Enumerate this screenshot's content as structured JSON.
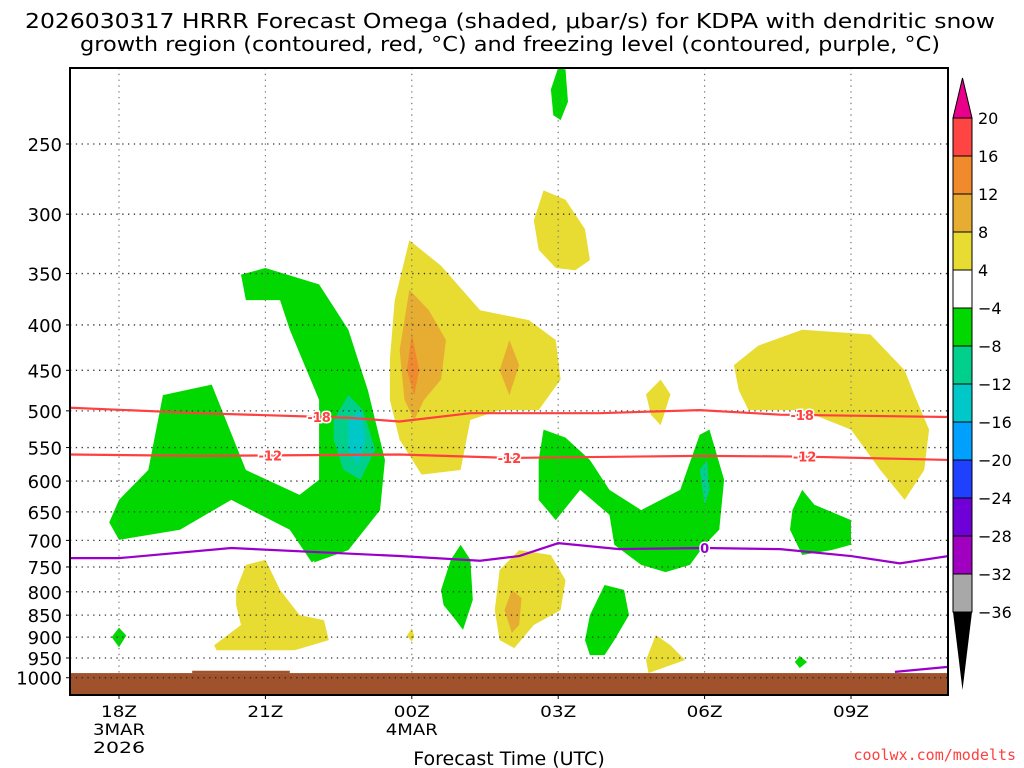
{
  "chart_data": {
    "type": "heatmap",
    "title_lines": [
      "2026030317 HRRR Forecast Omega (shaded, μbar/s) for KDPA with dendritic snow",
      "growth region (contoured, red, °C) and freezing level (contoured, purple, °C)"
    ],
    "xlabel": "Forecast Time (UTC)",
    "watermark": "coolwx.com/modelts",
    "xlim": [
      -1,
      17
    ],
    "ylim": [
      1045,
      205
    ],
    "y_scale": "log",
    "x_ticks": [
      {
        "h": 0,
        "lines": [
          "18Z",
          "3MAR",
          "2026"
        ]
      },
      {
        "h": 3,
        "lines": [
          "21Z"
        ]
      },
      {
        "h": 6,
        "lines": [
          "00Z",
          "4MAR"
        ]
      },
      {
        "h": 9,
        "lines": [
          "03Z"
        ]
      },
      {
        "h": 12,
        "lines": [
          "06Z"
        ]
      },
      {
        "h": 15,
        "lines": [
          "09Z"
        ]
      }
    ],
    "y_ticks": [
      250,
      300,
      350,
      400,
      450,
      500,
      550,
      600,
      650,
      700,
      750,
      800,
      850,
      900,
      950,
      1000
    ],
    "grid": true,
    "colorbar": {
      "labels": [
        "20",
        "16",
        "12",
        "8",
        "4",
        "−4",
        "−8",
        "−12",
        "−16",
        "−20",
        "−24",
        "−28",
        "−32",
        "−36"
      ],
      "colors": [
        "#ff4444",
        "#f08a2c",
        "#e6ad32",
        "#e8dc32",
        "#ffffff",
        "#00d800",
        "#00d08c",
        "#00c8c8",
        "#00a0ff",
        "#2040ff",
        "#7000d8",
        "#a000c0",
        "#a8a8a8"
      ],
      "top_arrow_color": "#e8008a",
      "bottom_arrow_color": "#000000"
    },
    "shaded_regions": [
      {
        "fill": "#00d800",
        "pts": [
          [
            -0.2,
            668
          ],
          [
            0,
            630
          ],
          [
            0.6,
            583
          ],
          [
            0.9,
            480
          ],
          [
            1.9,
            467
          ],
          [
            2.6,
            583
          ],
          [
            3.7,
            622
          ],
          [
            4.1,
            598
          ],
          [
            4.3,
            718
          ],
          [
            3.95,
            741
          ],
          [
            3.5,
            681
          ],
          [
            2.3,
            630
          ],
          [
            1.25,
            681
          ],
          [
            0,
            699
          ]
        ]
      },
      {
        "fill": "#00d800",
        "pts": [
          [
            2.5,
            351
          ],
          [
            3.0,
            345
          ],
          [
            4.1,
            360
          ],
          [
            4.7,
            405
          ],
          [
            5.1,
            474
          ],
          [
            5.45,
            568
          ],
          [
            5.35,
            647
          ],
          [
            4.7,
            718
          ],
          [
            4.0,
            741
          ],
          [
            4.1,
            598
          ],
          [
            4.1,
            486
          ],
          [
            3.5,
            405
          ],
          [
            3.3,
            375
          ],
          [
            2.6,
            375
          ]
        ]
      },
      {
        "fill": "#00d08c",
        "pts": [
          [
            4.4,
            512
          ],
          [
            4.7,
            480
          ],
          [
            5.0,
            499
          ],
          [
            5.25,
            553
          ],
          [
            4.95,
            598
          ],
          [
            4.6,
            583
          ],
          [
            4.4,
            539
          ]
        ]
      },
      {
        "fill": "#00c8c8",
        "pts": [
          [
            4.7,
            512
          ],
          [
            4.95,
            499
          ],
          [
            5.05,
            539
          ],
          [
            4.9,
            575
          ],
          [
            4.7,
            553
          ]
        ]
      },
      {
        "fill": "#e8dc32",
        "pts": [
          [
            5.55,
            438
          ],
          [
            5.65,
            375
          ],
          [
            5.95,
            321
          ],
          [
            6.6,
            343
          ],
          [
            7.4,
            385
          ],
          [
            8.4,
            395
          ],
          [
            8.95,
            416
          ],
          [
            9.05,
            461
          ],
          [
            8.6,
            499
          ],
          [
            7.8,
            499
          ],
          [
            7.2,
            512
          ],
          [
            7.0,
            583
          ],
          [
            6.2,
            590
          ],
          [
            5.75,
            539
          ],
          [
            5.55,
            486
          ]
        ]
      },
      {
        "fill": "#e6ad32",
        "pts": [
          [
            5.75,
            427
          ],
          [
            5.95,
            365
          ],
          [
            6.35,
            385
          ],
          [
            6.7,
            416
          ],
          [
            6.6,
            461
          ],
          [
            6.25,
            486
          ],
          [
            6.05,
            512
          ],
          [
            5.85,
            486
          ]
        ]
      },
      {
        "fill": "#f08a2c",
        "pts": [
          [
            5.9,
            450
          ],
          [
            6.0,
            409
          ],
          [
            6.15,
            450
          ],
          [
            6.05,
            480
          ]
        ]
      },
      {
        "fill": "#e6ad32",
        "pts": [
          [
            7.8,
            450
          ],
          [
            8.0,
            416
          ],
          [
            8.2,
            444
          ],
          [
            8.0,
            480
          ]
        ]
      },
      {
        "fill": "#e8dc32",
        "pts": [
          [
            8.5,
            305
          ],
          [
            8.7,
            282
          ],
          [
            9.15,
            289
          ],
          [
            9.55,
            312
          ],
          [
            9.65,
            338
          ],
          [
            9.35,
            347
          ],
          [
            8.95,
            345
          ],
          [
            8.6,
            329
          ]
        ]
      },
      {
        "fill": "#00d800",
        "pts": [
          [
            8.85,
            217
          ],
          [
            9.0,
            205
          ],
          [
            9.15,
            206
          ],
          [
            9.2,
            224
          ],
          [
            9.05,
            235
          ],
          [
            8.9,
            232
          ]
        ]
      },
      {
        "fill": "#e8dc32",
        "pts": [
          [
            10.8,
            479
          ],
          [
            11.1,
            461
          ],
          [
            11.3,
            479
          ],
          [
            11.1,
            519
          ],
          [
            10.9,
            505
          ]
        ]
      },
      {
        "fill": "#e8dc32",
        "pts": [
          [
            12.6,
            444
          ],
          [
            13.1,
            422
          ],
          [
            14.0,
            405
          ],
          [
            15.4,
            410
          ],
          [
            16.1,
            450
          ],
          [
            16.3,
            480
          ],
          [
            16.6,
            525
          ],
          [
            16.5,
            583
          ],
          [
            16.1,
            630
          ],
          [
            15.6,
            583
          ],
          [
            15.0,
            525
          ],
          [
            14.0,
            499
          ],
          [
            12.9,
            499
          ],
          [
            12.7,
            474
          ]
        ]
      },
      {
        "fill": "#00d800",
        "pts": [
          [
            8.6,
            568
          ],
          [
            8.7,
            525
          ],
          [
            9.15,
            536
          ],
          [
            9.65,
            568
          ],
          [
            10.05,
            614
          ],
          [
            10.7,
            647
          ],
          [
            11.5,
            614
          ],
          [
            11.9,
            532
          ],
          [
            12.1,
            525
          ],
          [
            12.4,
            598
          ],
          [
            12.3,
            681
          ],
          [
            12.0,
            708
          ],
          [
            11.7,
            746
          ],
          [
            11.2,
            760
          ],
          [
            10.7,
            746
          ],
          [
            10.15,
            708
          ],
          [
            10.05,
            655
          ],
          [
            9.45,
            614
          ],
          [
            8.95,
            664
          ],
          [
            8.6,
            630
          ]
        ]
      },
      {
        "fill": "#00d08c",
        "pts": [
          [
            11.9,
            583
          ],
          [
            12.05,
            568
          ],
          [
            12.1,
            614
          ],
          [
            12.0,
            638
          ]
        ]
      },
      {
        "fill": "#00d800",
        "pts": [
          [
            13.8,
            647
          ],
          [
            14.0,
            614
          ],
          [
            14.25,
            638
          ],
          [
            15.0,
            664
          ],
          [
            15.0,
            708
          ],
          [
            14.6,
            718
          ],
          [
            14.0,
            727
          ],
          [
            13.75,
            681
          ]
        ]
      },
      {
        "fill": "#e8dc32",
        "pts": [
          [
            2.4,
            796
          ],
          [
            2.6,
            746
          ],
          [
            3.0,
            736
          ],
          [
            3.3,
            796
          ],
          [
            3.7,
            850
          ],
          [
            4.2,
            861
          ],
          [
            4.3,
            907
          ],
          [
            3.6,
            931
          ],
          [
            2.5,
            931
          ],
          [
            2.0,
            931
          ],
          [
            1.95,
            919
          ],
          [
            2.5,
            872
          ],
          [
            2.4,
            828
          ]
        ]
      },
      {
        "fill": "#00d800",
        "pts": [
          [
            -0.15,
            900
          ],
          [
            0,
            878
          ],
          [
            0.15,
            896
          ],
          [
            0,
            924
          ]
        ]
      },
      {
        "fill": "#e8dc32",
        "pts": [
          [
            5.9,
            897
          ],
          [
            6.0,
            879
          ],
          [
            6.05,
            897
          ],
          [
            6.0,
            911
          ]
        ]
      },
      {
        "fill": "#00d800",
        "pts": [
          [
            6.6,
            796
          ],
          [
            6.8,
            736
          ],
          [
            7.0,
            708
          ],
          [
            7.2,
            736
          ],
          [
            7.25,
            817
          ],
          [
            7.05,
            883
          ],
          [
            6.9,
            861
          ],
          [
            6.65,
            828
          ]
        ]
      },
      {
        "fill": "#e8dc32",
        "pts": [
          [
            7.7,
            839
          ],
          [
            7.8,
            756
          ],
          [
            8.2,
            718
          ],
          [
            8.85,
            727
          ],
          [
            9.15,
            776
          ],
          [
            9.05,
            839
          ],
          [
            8.5,
            872
          ],
          [
            8.1,
            926
          ],
          [
            7.8,
            907
          ]
        ]
      },
      {
        "fill": "#e6ad32",
        "pts": [
          [
            7.9,
            839
          ],
          [
            8.05,
            796
          ],
          [
            8.25,
            813
          ],
          [
            8.2,
            872
          ],
          [
            8.05,
            890
          ]
        ]
      },
      {
        "fill": "#00d800",
        "pts": [
          [
            9.55,
            907
          ],
          [
            9.65,
            850
          ],
          [
            9.95,
            786
          ],
          [
            10.35,
            796
          ],
          [
            10.45,
            850
          ],
          [
            10.15,
            907
          ],
          [
            9.95,
            943
          ],
          [
            9.65,
            943
          ]
        ]
      },
      {
        "fill": "#e8dc32",
        "pts": [
          [
            10.8,
            955
          ],
          [
            11.0,
            895
          ],
          [
            11.3,
            919
          ],
          [
            11.6,
            955
          ],
          [
            11.3,
            968
          ],
          [
            10.85,
            988
          ]
        ]
      },
      {
        "fill": "#00d800",
        "pts": [
          [
            13.85,
            960
          ],
          [
            13.95,
            945
          ],
          [
            14.1,
            960
          ],
          [
            13.95,
            975
          ]
        ]
      }
    ],
    "ground": {
      "fill": "#a0522d",
      "surface_p": 988,
      "bump": {
        "h": [
          1.5,
          3.5
        ],
        "p": 982
      }
    },
    "contours": [
      {
        "name": "dgz-minus18",
        "color": "#ff4040",
        "pts": [
          [
            -1,
            496
          ],
          [
            1.65,
            503
          ],
          [
            4.7,
            509
          ],
          [
            5.75,
            514
          ],
          [
            7.2,
            503
          ],
          [
            9.85,
            503
          ],
          [
            11.9,
            499
          ],
          [
            13.55,
            505
          ],
          [
            17,
            508
          ]
        ],
        "labels": [
          {
            "text": "-18",
            "h": 4.1
          },
          {
            "text": "-18",
            "h": 14.0
          }
        ]
      },
      {
        "name": "dgz-minus12",
        "color": "#ff4040",
        "pts": [
          [
            -1,
            560
          ],
          [
            1.65,
            562
          ],
          [
            5.75,
            560
          ],
          [
            8.0,
            565
          ],
          [
            11.9,
            562
          ],
          [
            14.0,
            563
          ],
          [
            17,
            568
          ]
        ],
        "labels": [
          {
            "text": "-12",
            "h": 3.1
          },
          {
            "text": "-12",
            "h": 8.0
          },
          {
            "text": "-12",
            "h": 14.05
          }
        ]
      },
      {
        "name": "freezing-level",
        "color": "#9a00cc",
        "pts": [
          [
            -1,
            733
          ],
          [
            0,
            733
          ],
          [
            2.3,
            714
          ],
          [
            5.75,
            729
          ],
          [
            7.4,
            738
          ],
          [
            8.2,
            729
          ],
          [
            9.0,
            705
          ],
          [
            10.25,
            716
          ],
          [
            12.0,
            714
          ],
          [
            13.55,
            716
          ],
          [
            15.0,
            729
          ],
          [
            16.0,
            743
          ],
          [
            17,
            729
          ]
        ],
        "labels": [
          {
            "text": "0",
            "h": 12.0
          }
        ]
      },
      {
        "name": "freezing-level-surface",
        "color": "#9a00cc",
        "pts": [
          [
            15.9,
            985
          ],
          [
            17,
            972
          ]
        ],
        "labels": []
      }
    ]
  }
}
